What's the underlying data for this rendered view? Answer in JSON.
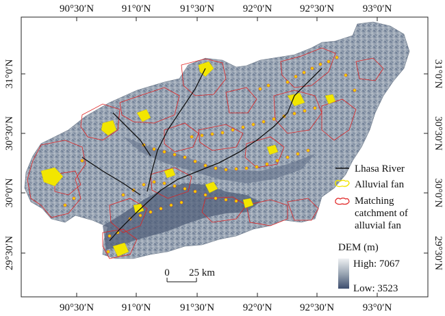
{
  "axes": {
    "top_labels": [
      "90°30′N",
      "91°0′N",
      "91°30′N",
      "92°0′N",
      "92°30′N",
      "93°0′N"
    ],
    "bottom_labels": [
      "90°30′N",
      "91°0′N",
      "91°30′N",
      "92°0′N",
      "92°30′N",
      "93°0′N"
    ],
    "left_labels": [
      "31°0′N",
      "30°30′N",
      "30°0′N",
      "29°30′N"
    ],
    "right_labels": [
      "31°0′N",
      "30°30′N",
      "30°0′N",
      "29°30′N"
    ]
  },
  "legend": {
    "river": "Lhasa River",
    "fan": "Alluvial fan",
    "catchment_line1": "Matching",
    "catchment_line2": "catchment of",
    "catchment_line3": "alluvial fan",
    "dem_title": "DEM (m)",
    "dem_high": "High: 7067",
    "dem_low": "Low: 3523"
  },
  "scale": {
    "zero": "0",
    "distance": "25 km"
  },
  "colors": {
    "fan": "#f2e600",
    "catchment": "#e02020",
    "river": "#111111",
    "dem_high": "#eef0f2",
    "dem_low": "#3e4e6e"
  }
}
